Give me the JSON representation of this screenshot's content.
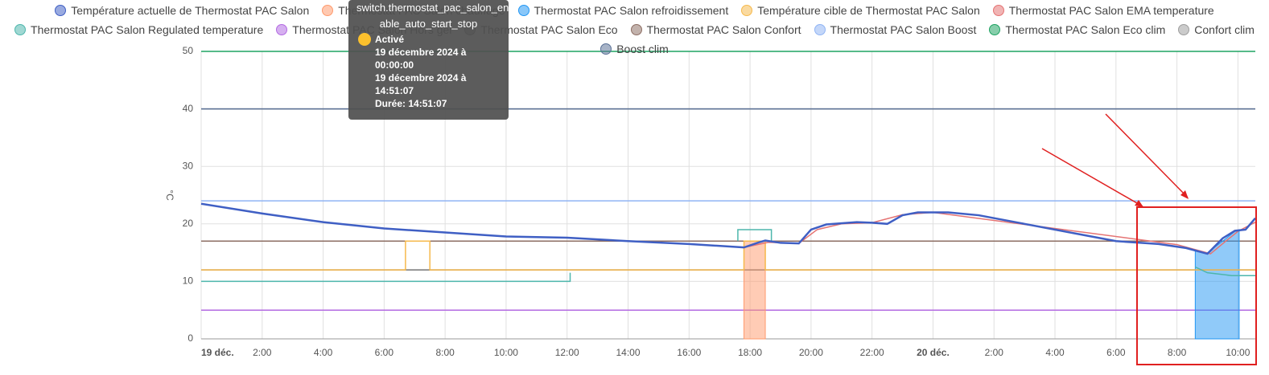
{
  "chart_data": {
    "type": "line",
    "y_label": "°C",
    "xlim": [
      0,
      34.57
    ],
    "ylim": [
      0,
      50
    ],
    "grid": true,
    "yticks": [
      0,
      10,
      20,
      30,
      40,
      50
    ],
    "xticks": [
      {
        "value": 0,
        "label": "19 déc."
      },
      {
        "value": 2,
        "label": "2:00"
      },
      {
        "value": 4,
        "label": "4:00"
      },
      {
        "value": 6,
        "label": "6:00"
      },
      {
        "value": 8,
        "label": "8:00"
      },
      {
        "value": 10,
        "label": "10:00"
      },
      {
        "value": 12,
        "label": "12:00"
      },
      {
        "value": 14,
        "label": "14:00"
      },
      {
        "value": 16,
        "label": "16:00"
      },
      {
        "value": 18,
        "label": "18:00"
      },
      {
        "value": 20,
        "label": "20:00"
      },
      {
        "value": 22,
        "label": "22:00"
      },
      {
        "value": 24,
        "label": "20 déc."
      },
      {
        "value": 26,
        "label": "2:00"
      },
      {
        "value": 28,
        "label": "4:00"
      },
      {
        "value": 30,
        "label": "6:00"
      },
      {
        "value": 32,
        "label": "8:00"
      },
      {
        "value": 34,
        "label": "10:00"
      }
    ],
    "series": [
      {
        "name": "Thermostat PAC Salon Eco clim",
        "color": "#1ea362",
        "x": [
          0,
          34.57
        ],
        "values": [
          50,
          50
        ]
      },
      {
        "name": "Confort clim",
        "color": "#9e9e9e",
        "x": [
          0,
          34.57
        ],
        "values": [
          40,
          40
        ]
      },
      {
        "name": "Boost clim",
        "color": "#5a7196",
        "x": [
          0,
          34.57
        ],
        "values": [
          40,
          40
        ]
      },
      {
        "name": "Thermostat PAC Salon Boost",
        "color": "#90b4f4",
        "x": [
          0,
          34.57
        ],
        "values": [
          24,
          24
        ]
      },
      {
        "name": "Thermostat PAC Salon Confort",
        "color": "#8d6e63",
        "x": [
          0,
          34.57
        ],
        "values": [
          17,
          17
        ]
      },
      {
        "name": "Thermostat PAC Salon Eco",
        "color": "#757575",
        "x": [
          0,
          34.57
        ],
        "values": [
          12,
          12
        ]
      },
      {
        "name": "Thermostat PAC Salon Hors gel",
        "color": "#b36ae2",
        "x": [
          0,
          34.57
        ],
        "values": [
          5,
          5
        ]
      },
      {
        "name": "Thermostat PAC Salon chauffage",
        "color": "#ff9a6c",
        "style": "area",
        "x": [
          17.8,
          18.5
        ],
        "values": [
          17,
          17
        ]
      },
      {
        "name": "Thermostat PAC Salon refroidissement",
        "color": "#2196f3",
        "style": "area",
        "x": [
          32.6,
          33,
          33.5,
          33.9,
          34.04
        ],
        "values": [
          15.3,
          15,
          17,
          18.7,
          19
        ]
      },
      {
        "name": "Température cible de Thermostat PAC Salon",
        "color": "#f6b94c",
        "x": [
          0,
          6.7,
          6.7,
          7.5,
          7.5,
          17.8,
          17.8,
          18.5,
          18.5,
          34.57
        ],
        "values": [
          12,
          12,
          17,
          17,
          12,
          12,
          17,
          17,
          12,
          12
        ]
      },
      {
        "name": "Thermostat PAC Salon Regulated temperature",
        "color": "#4db6ac",
        "x": [
          0,
          12.1,
          12.1,
          12.2,
          17.6,
          17.6,
          18.7,
          18.7,
          18.8,
          32.6,
          32.6,
          33,
          33.8,
          34.57
        ],
        "values": [
          10,
          10,
          11.5,
          null,
          17,
          19,
          19,
          17,
          null,
          null,
          12.5,
          11.5,
          11,
          11
        ]
      },
      {
        "name": "Thermostat PAC Salon EMA temperature",
        "color": "#e57373",
        "x": [
          17.8,
          18.6,
          19.6,
          20.2,
          21,
          22,
          23,
          24,
          32,
          33.1,
          33.6,
          34,
          34.57
        ],
        "values": [
          15.9,
          16.8,
          16.6,
          19,
          20,
          20.2,
          21.6,
          22,
          16.4,
          14.8,
          17,
          18.7,
          20.3
        ]
      },
      {
        "name": "Température actuelle de Thermostat PAC Salon",
        "color": "#3f5fc4",
        "x": [
          0,
          2,
          4,
          6,
          8,
          10,
          12,
          14,
          16,
          17.8,
          18.3,
          18.5,
          19,
          19.6,
          20,
          20.5,
          21.5,
          22,
          22.5,
          23,
          23.5,
          24.5,
          25.5,
          27,
          29,
          30,
          31.4,
          32.3,
          33,
          33.5,
          33.9,
          34.25,
          34.57
        ],
        "values": [
          23.5,
          21.8,
          20.3,
          19.2,
          18.5,
          17.8,
          17.6,
          17,
          16.5,
          15.9,
          16.8,
          17.1,
          16.7,
          16.6,
          19,
          19.9,
          20.3,
          20.2,
          20,
          21.5,
          22,
          22,
          21.5,
          20,
          18,
          17,
          16.5,
          15.8,
          14.8,
          17.5,
          18.8,
          19,
          21
        ]
      }
    ],
    "legend_order": [
      12,
      7,
      8,
      9,
      11,
      10,
      6,
      5,
      4,
      3,
      0,
      1,
      2
    ]
  },
  "tooltip": {
    "entity": "switch.thermostat_pac_salon_en able_auto_start_stop",
    "state": "Activé",
    "start": "19 décembre 2024 à 00:00:00",
    "end": "19 décembre 2024 à 14:51:07",
    "duration": "Durée: 14:51:07"
  }
}
